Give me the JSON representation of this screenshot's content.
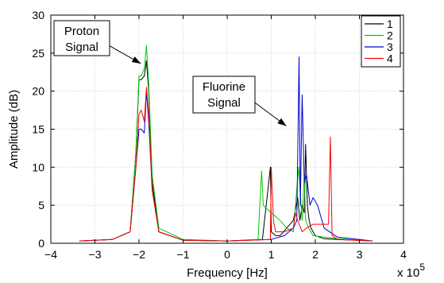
{
  "chart_data": {
    "type": "line",
    "title": "",
    "xlabel": "Frequency [Hz]",
    "ylabel": "Amplitude (dB)",
    "x_multiplier": "x 10",
    "x_multiplier_exponent": "5",
    "xlim": [
      -4,
      4
    ],
    "ylim": [
      0,
      30
    ],
    "xticks": [
      -4,
      -3,
      -2,
      -1,
      0,
      1,
      2,
      3,
      4
    ],
    "yticks": [
      0,
      5,
      10,
      15,
      20,
      25,
      30
    ],
    "grid": true,
    "legend_position": "top-right",
    "annotations": [
      {
        "lines": [
          "Proton",
          "Signal"
        ],
        "target_x": -1.85,
        "target_y": 23
      },
      {
        "lines": [
          "Fluorine",
          "Signal"
        ],
        "target_x": 1.45,
        "target_y": 15
      }
    ],
    "series": [
      {
        "name": "1",
        "color": "#000000",
        "x": [
          -3.35,
          -2.6,
          -2.2,
          -2.07,
          -2.0,
          -1.95,
          -1.88,
          -1.83,
          -1.78,
          -1.7,
          -1.55,
          -1.0,
          0.0,
          0.8,
          0.98,
          1.0,
          1.1,
          1.2,
          1.5,
          1.6,
          1.65,
          1.7,
          1.75,
          1.78,
          1.82,
          1.86,
          1.9,
          2.0,
          2.2,
          2.5,
          3.3
        ],
        "y": [
          0.3,
          0.5,
          1.5,
          12.0,
          21.5,
          21.5,
          22.0,
          24.0,
          20.0,
          8.0,
          1.5,
          0.4,
          0.3,
          0.5,
          10.0,
          1.5,
          1.0,
          1.0,
          3.0,
          6.0,
          3.0,
          5.0,
          4.0,
          13.0,
          5.0,
          3.0,
          2.0,
          1.0,
          0.6,
          0.5,
          0.3
        ]
      },
      {
        "name": "2",
        "color": "#00cc00",
        "x": [
          -3.35,
          -2.6,
          -2.2,
          -2.07,
          -2.0,
          -1.95,
          -1.88,
          -1.83,
          -1.78,
          -1.7,
          -1.55,
          -1.0,
          0.0,
          0.7,
          0.78,
          0.82,
          1.0,
          1.2,
          1.35,
          1.5,
          1.62,
          1.7,
          1.75,
          1.78,
          1.85,
          1.95,
          2.2,
          2.5,
          3.3
        ],
        "y": [
          0.3,
          0.5,
          1.5,
          12.0,
          22.0,
          22.0,
          23.0,
          26.0,
          21.0,
          9.0,
          2.0,
          0.5,
          0.3,
          0.5,
          9.5,
          5.0,
          4.0,
          3.0,
          2.0,
          1.5,
          10.0,
          3.0,
          9.0,
          3.0,
          2.0,
          1.0,
          0.8,
          0.6,
          0.3
        ]
      },
      {
        "name": "3",
        "color": "#0000cc",
        "x": [
          -3.35,
          -2.6,
          -2.2,
          -2.07,
          -2.0,
          -1.95,
          -1.88,
          -1.83,
          -1.78,
          -1.7,
          -1.55,
          -1.0,
          0.0,
          1.0,
          1.3,
          1.5,
          1.58,
          1.63,
          1.66,
          1.7,
          1.75,
          1.8,
          1.88,
          1.95,
          2.05,
          2.2,
          2.5,
          3.3
        ],
        "y": [
          0.3,
          0.5,
          1.5,
          10.0,
          15.0,
          15.0,
          14.5,
          20.0,
          16.0,
          7.0,
          1.5,
          0.4,
          0.3,
          0.5,
          1.0,
          2.0,
          3.0,
          24.5,
          5.0,
          19.5,
          8.0,
          9.0,
          5.0,
          6.0,
          5.0,
          2.0,
          0.8,
          0.3
        ]
      },
      {
        "name": "4",
        "color": "#ff0000",
        "x": [
          -3.35,
          -2.6,
          -2.2,
          -2.07,
          -2.0,
          -1.95,
          -1.88,
          -1.83,
          -1.78,
          -1.7,
          -1.55,
          -1.0,
          0.0,
          0.98,
          1.0,
          1.05,
          1.1,
          1.3,
          1.5,
          1.55,
          1.6,
          1.7,
          1.8,
          1.95,
          2.1,
          2.2,
          2.3,
          2.34,
          2.38,
          2.5,
          3.3
        ],
        "y": [
          0.3,
          0.5,
          1.5,
          10.0,
          17.0,
          17.5,
          16.0,
          20.5,
          17.0,
          7.0,
          1.5,
          0.4,
          0.3,
          0.5,
          10.0,
          3.0,
          1.5,
          1.5,
          2.0,
          4.0,
          3.0,
          1.5,
          2.0,
          2.5,
          2.5,
          2.5,
          2.5,
          14.0,
          1.0,
          0.5,
          0.3
        ]
      }
    ]
  }
}
